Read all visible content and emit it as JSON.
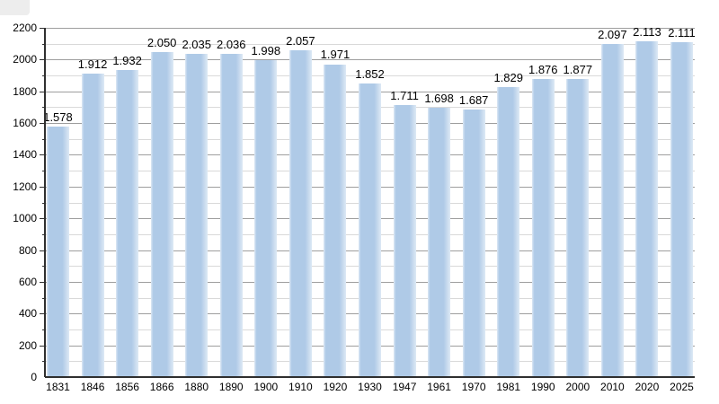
{
  "page": {
    "background": "#ffffff"
  },
  "chart_data": {
    "type": "bar",
    "title": "",
    "xlabel": "",
    "ylabel": "",
    "categories": [
      "1831",
      "1846",
      "1856",
      "1866",
      "1880",
      "1890",
      "1900",
      "1910",
      "1920",
      "1930",
      "1947",
      "1961",
      "1970",
      "1981",
      "1990",
      "2000",
      "2010",
      "2020",
      "2025"
    ],
    "values": [
      1578,
      1912,
      1932,
      2050,
      2035,
      2036,
      1998,
      2057,
      1971,
      1852,
      1711,
      1698,
      1687,
      1829,
      1876,
      1877,
      2097,
      2113,
      2111
    ],
    "value_labels": [
      "1.578",
      "1.912",
      "1.932",
      "2.050",
      "2.035",
      "2.036",
      "1.998",
      "2.057",
      "1.971",
      "1.852",
      "1.711",
      "1.698",
      "1.687",
      "1.829",
      "1.876",
      "1.877",
      "2.097",
      "2.113",
      "2.111"
    ],
    "ylim": [
      0,
      2200
    ],
    "y_major_step": 200,
    "y_minor_step": 100,
    "y_tick_labels": [
      "0",
      "200",
      "400",
      "600",
      "800",
      "1000",
      "1200",
      "1400",
      "1600",
      "1800",
      "2000",
      "2200"
    ],
    "grid": true,
    "legend_position": "none",
    "colors": {
      "bar": "#AFCAE7",
      "bar_edge_light": "#DDE9F5",
      "grid_major": "#9e9e9e",
      "grid_minor": "#d9d9d9",
      "axis": "#2f2f2f",
      "label": "#000000"
    }
  }
}
